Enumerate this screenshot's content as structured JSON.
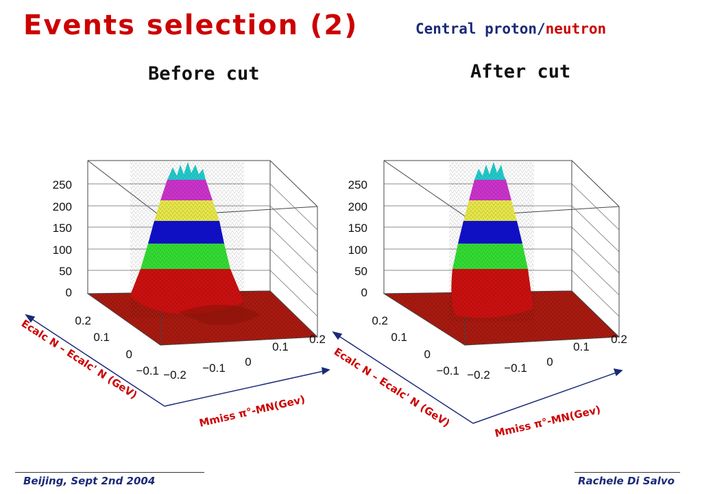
{
  "slide": {
    "title": "Events selection (2)",
    "subtitle_part1": "Central proton/",
    "subtitle_part2": "neutron"
  },
  "panels": [
    {
      "heading": "Before cut",
      "z_ticks": [
        "250",
        "200",
        "150",
        "100",
        "50",
        "0"
      ],
      "y_ticks": [
        "0.2",
        "0.1",
        "0",
        "−0.1"
      ],
      "x_ticks": [
        "−0.2",
        "−0.1",
        "0",
        "0.1",
        "0.2"
      ],
      "y_axis_label": "Ecalc N – Ecalc' N (GeV)",
      "x_axis_label": "Mmiss π°-MN(Gev)"
    },
    {
      "heading": "After cut",
      "z_ticks": [
        "250",
        "200",
        "150",
        "100",
        "50",
        "0"
      ],
      "y_ticks": [
        "0.2",
        "0.1",
        "0",
        "−0.1"
      ],
      "x_ticks": [
        "−0.2",
        "−0.1",
        "0",
        "0.1",
        "0.2"
      ],
      "y_axis_label": "Ecalc N – Ecalc' N (GeV)",
      "x_axis_label": "Mmiss π°-MN(Gev)"
    }
  ],
  "peak_color_bands": [
    "#cc1010",
    "#33dd33",
    "#1010cc",
    "#e8e84a",
    "#cc33cc",
    "#22cccc"
  ],
  "floor_color": "#aa1a10",
  "footer": {
    "left": "Beijing, Sept 2nd 2004",
    "right": "Rachele Di Salvo"
  }
}
